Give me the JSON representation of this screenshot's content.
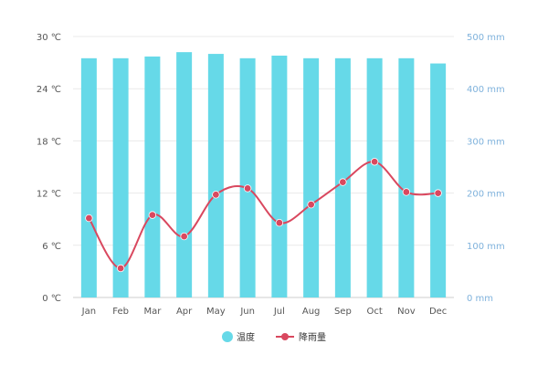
{
  "chart_data": {
    "type": "bar",
    "categories": [
      "Jan",
      "Feb",
      "Mar",
      "Apr",
      "May",
      "Jun",
      "Jul",
      "Aug",
      "Sep",
      "Oct",
      "Nov",
      "Dec"
    ],
    "series": [
      {
        "name": "温度",
        "type": "bar",
        "axis": "left",
        "values": [
          27.5,
          27.5,
          27.7,
          28.2,
          28.0,
          27.5,
          27.8,
          27.5,
          27.5,
          27.5,
          27.5,
          26.9
        ]
      },
      {
        "name": "降雨量",
        "type": "line",
        "axis": "right",
        "values": [
          152,
          56,
          158,
          117,
          197,
          209,
          143,
          178,
          221,
          260,
          202,
          200
        ]
      }
    ],
    "y_left": {
      "range": [
        0,
        30
      ],
      "ticks": [
        "0 ℃",
        "6 ℃",
        "12 ℃",
        "18 ℃",
        "24 ℃",
        "30 ℃"
      ],
      "tick_values": [
        0,
        6,
        12,
        18,
        24,
        30
      ]
    },
    "y_right": {
      "range": [
        0,
        500
      ],
      "ticks": [
        "0 mm",
        "100 mm",
        "200 mm",
        "300 mm",
        "400 mm",
        "500 mm"
      ],
      "tick_values": [
        0,
        100,
        200,
        300,
        400,
        500
      ]
    },
    "grid": true,
    "legend": "bottom-center",
    "colors": {
      "bar": "#66d9e8",
      "line": "#d9485f",
      "right_axis_text": "#7fb2dc",
      "left_axis_text": "#555555",
      "grid": "#e9e9e9"
    }
  }
}
